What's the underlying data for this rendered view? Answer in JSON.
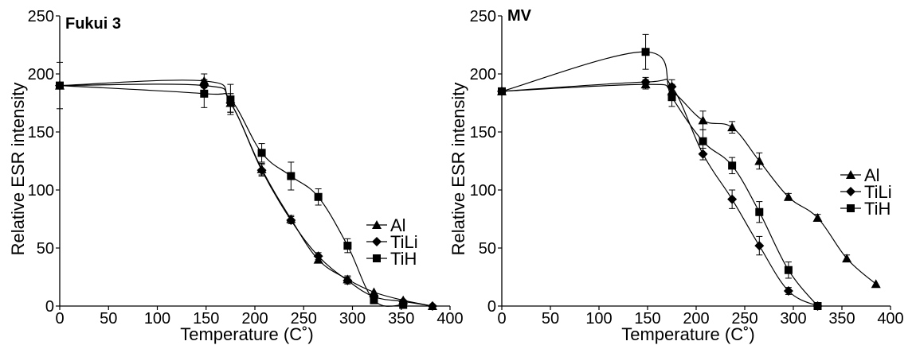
{
  "chart_data": [
    {
      "type": "line",
      "title": "Fukui 3",
      "xlabel": "Temperature (C˚)",
      "ylabel": "Relative ESR intensity",
      "xlim": [
        0,
        400
      ],
      "ylim": [
        0,
        250
      ],
      "xticks": [
        "0",
        "50",
        "100",
        "150",
        "200",
        "250",
        "300",
        "350",
        "400"
      ],
      "yticks": [
        "0",
        "50",
        "100",
        "150",
        "200",
        "250"
      ],
      "grid": false,
      "legend": "right",
      "series": [
        {
          "name": "Al",
          "marker": "triangle",
          "x": [
            0,
            148,
            175,
            207,
            237,
            265,
            295,
            322,
            352,
            382
          ],
          "y": [
            190,
            194,
            175,
            118,
            75,
            40,
            23,
            12,
            5,
            0
          ],
          "err": [
            0,
            6,
            8,
            5,
            3,
            3,
            3,
            0,
            0,
            0
          ]
        },
        {
          "name": "TiLi",
          "marker": "diamond",
          "x": [
            0,
            148,
            175,
            207,
            237,
            265,
            295,
            322,
            352,
            382
          ],
          "y": [
            190,
            190,
            175,
            117,
            74,
            43,
            22,
            8,
            4,
            0
          ],
          "err": [
            0,
            5,
            8,
            5,
            3,
            3,
            3,
            0,
            0,
            0
          ]
        },
        {
          "name": "TiH",
          "marker": "square",
          "x": [
            0,
            148,
            175,
            207,
            237,
            265,
            295,
            322,
            352
          ],
          "y": [
            190,
            183,
            178,
            132,
            112,
            94,
            52,
            5,
            1
          ],
          "err": [
            20,
            12,
            13,
            8,
            12,
            7,
            6,
            0,
            0
          ]
        }
      ]
    },
    {
      "type": "line",
      "title": "MV",
      "xlabel": "Temperature (C˚)",
      "ylabel": "Relative ESR intensity",
      "xlim": [
        0,
        400
      ],
      "ylim": [
        0,
        250
      ],
      "xticks": [
        "0",
        "50",
        "100",
        "150",
        "200",
        "250",
        "300",
        "350",
        "400"
      ],
      "yticks": [
        "0",
        "50",
        "100",
        "150",
        "200",
        "250"
      ],
      "grid": false,
      "legend": "right",
      "series": [
        {
          "name": "Al",
          "marker": "triangle",
          "x": [
            0,
            148,
            175,
            207,
            237,
            265,
            295,
            325,
            355,
            385
          ],
          "y": [
            185,
            191,
            185,
            160,
            154,
            125,
            94,
            76,
            41,
            19
          ],
          "err": [
            0,
            4,
            6,
            8,
            5,
            7,
            3,
            3,
            3,
            0
          ]
        },
        {
          "name": "TiLi",
          "marker": "diamond",
          "x": [
            0,
            148,
            175,
            207,
            237,
            265,
            295,
            325
          ],
          "y": [
            185,
            193,
            189,
            131,
            92,
            52,
            13,
            0
          ],
          "err": [
            0,
            4,
            6,
            5,
            8,
            8,
            3,
            0
          ]
        },
        {
          "name": "TiH",
          "marker": "square",
          "x": [
            0,
            148,
            175,
            207,
            237,
            265,
            295,
            325
          ],
          "y": [
            185,
            219,
            180,
            142,
            121,
            81,
            31,
            0
          ],
          "err": [
            0,
            15,
            8,
            10,
            7,
            9,
            7,
            0
          ]
        }
      ]
    }
  ]
}
